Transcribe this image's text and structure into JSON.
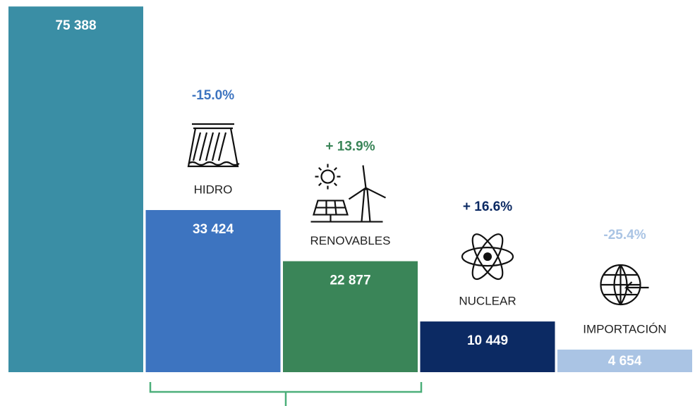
{
  "chart_data": {
    "type": "bar",
    "categories": [
      null,
      "HIDRO",
      "RENOVABLES",
      "NUCLEAR",
      "IMPORTACIÓN"
    ],
    "values": [
      75388,
      33424,
      22877,
      10449,
      4654
    ],
    "value_labels": [
      "75 388",
      "33 424",
      "22 877",
      "10 449",
      "4 654"
    ],
    "changes": [
      null,
      "-15.0%",
      "+ 13.9%",
      "+ 16.6%",
      "-25.4%"
    ],
    "colors": [
      "#3a8ea5",
      "#3d74c0",
      "#3a8558",
      "#0c2a63",
      "#aac4e4"
    ],
    "ylim": [
      0,
      76000
    ]
  }
}
